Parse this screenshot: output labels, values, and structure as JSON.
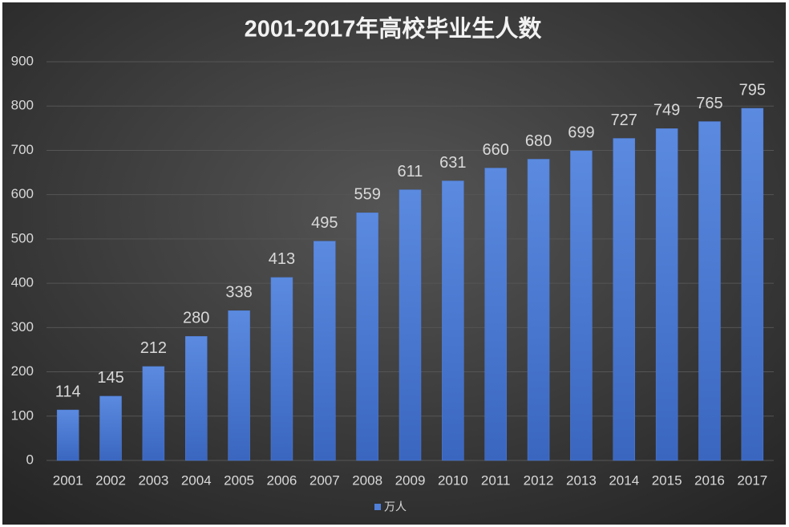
{
  "chart_data": {
    "type": "bar",
    "title": "2001-2017年高校毕业生人数",
    "categories": [
      "2001",
      "2002",
      "2003",
      "2004",
      "2005",
      "2006",
      "2007",
      "2008",
      "2009",
      "2010",
      "2011",
      "2012",
      "2013",
      "2014",
      "2015",
      "2016",
      "2017"
    ],
    "series": [
      {
        "name": "万人",
        "color": "#4f7fd8",
        "values": [
          114,
          145,
          212,
          280,
          338,
          413,
          495,
          559,
          611,
          631,
          660,
          680,
          699,
          727,
          749,
          765,
          795
        ]
      }
    ],
    "ylim": [
      0,
      900
    ],
    "yticks": [
      0,
      100,
      200,
      300,
      400,
      500,
      600,
      700,
      800,
      900
    ],
    "grid": true,
    "legend": "bottom"
  }
}
